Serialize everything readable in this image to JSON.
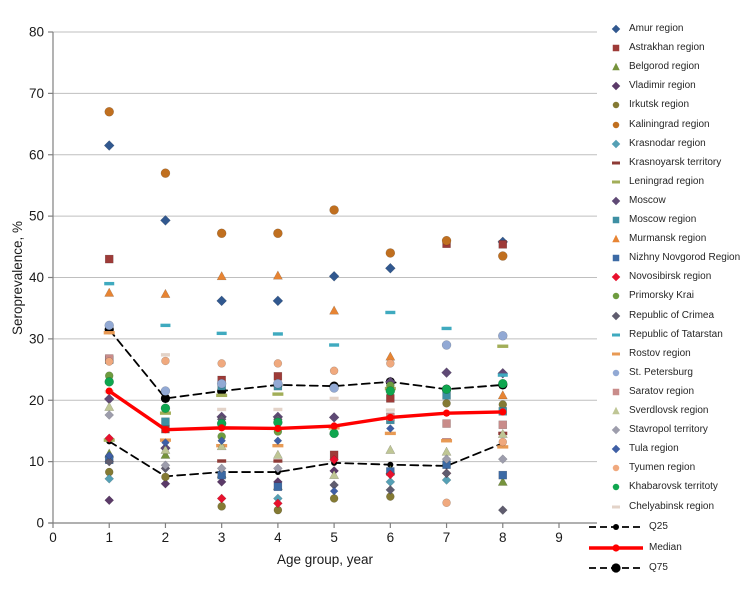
{
  "chart_data": {
    "type": "scatter",
    "title": "",
    "xlabel": "Age group, year",
    "ylabel": "Seroprevalence, %",
    "xlim": [
      0,
      9
    ],
    "ylim": [
      0,
      80
    ],
    "xticks": [
      0,
      1,
      2,
      3,
      4,
      5,
      6,
      7,
      8,
      9
    ],
    "yticks": [
      0,
      10,
      20,
      30,
      40,
      50,
      60,
      70,
      80
    ],
    "grid": "horizontal",
    "legend_position": "right",
    "x": [
      1,
      2,
      3,
      4,
      5,
      6,
      7,
      8
    ],
    "series": [
      {
        "name": "Amur region",
        "marker": "diamond",
        "color": "#31588F",
        "size": 8,
        "values": [
          61.5,
          49.3,
          36.2,
          36.2,
          40.2,
          41.5,
          null,
          45.8
        ]
      },
      {
        "name": "Astrakhan region",
        "marker": "square",
        "color": "#9E3B38",
        "size": 8,
        "values": [
          43.0,
          15.3,
          23.3,
          23.9,
          11.1,
          20.3,
          45.5,
          45.4
        ]
      },
      {
        "name": "Belgorod region",
        "marker": "triangle",
        "color": "#76933C",
        "size": 8,
        "values": [
          11.3,
          11.1,
          8.0,
          6.0,
          15.0,
          8.6,
          10.0,
          6.7
        ]
      },
      {
        "name": "Vladimir region",
        "marker": "diamond",
        "color": "#5B3A68",
        "size": 7,
        "values": [
          3.7,
          6.4,
          6.7,
          6.7,
          8.5,
          null,
          null,
          null
        ]
      },
      {
        "name": "Irkutsk region",
        "marker": "circle",
        "color": "#847A33",
        "size": 8,
        "values": [
          8.3,
          7.5,
          2.7,
          2.1,
          4.0,
          4.3,
          19.5,
          19.3
        ]
      },
      {
        "name": "Kaliningrad region",
        "marker": "circle",
        "color": "#C06F1F",
        "size": 9,
        "values": [
          67.0,
          57.0,
          47.2,
          47.2,
          51.0,
          44.0,
          46.0,
          43.5
        ]
      },
      {
        "name": "Krasnodar region",
        "marker": "diamond",
        "color": "#55A0B5",
        "size": 7,
        "values": [
          7.2,
          null,
          null,
          4.0,
          null,
          6.7,
          7.0,
          null
        ]
      },
      {
        "name": "Krasnoyarsk territory",
        "marker": "dash",
        "color": "#8E3A36",
        "size": 7,
        "values": [
          null,
          null,
          10.1,
          10.1,
          null,
          null,
          13.5,
          14.6
        ]
      },
      {
        "name": "Leningrad region",
        "marker": "dash",
        "color": "#A2AE58",
        "size": 9,
        "values": [
          13.5,
          17.9,
          20.8,
          21.0,
          null,
          21.9,
          null,
          28.8
        ]
      },
      {
        "name": "Moscow",
        "marker": "diamond",
        "color": "#5F4975",
        "size": 8,
        "values": [
          20.2,
          12.2,
          17.3,
          17.3,
          17.2,
          23.0,
          24.5,
          24.4
        ]
      },
      {
        "name": "Moscow region",
        "marker": "square",
        "color": "#3E8FA3",
        "size": 8,
        "values": [
          26.6,
          16.5,
          22.3,
          22.3,
          null,
          16.8,
          20.8,
          18.2
        ]
      },
      {
        "name": "Murmansk region",
        "marker": "triangle",
        "color": "#E78433",
        "size": 8,
        "values": [
          37.5,
          37.3,
          40.2,
          40.3,
          34.6,
          27.1,
          null,
          20.8
        ]
      },
      {
        "name": "Nizhny Novgorod Region",
        "marker": "square",
        "color": "#3C6AA5",
        "size": 8,
        "values": [
          10.3,
          null,
          7.8,
          5.9,
          null,
          8.4,
          9.5,
          7.8
        ]
      },
      {
        "name": "Novosibirsk region",
        "marker": "diamond",
        "color": "#E8112D",
        "size": 7,
        "values": [
          13.8,
          null,
          4.0,
          3.2,
          10.3,
          7.9,
          8.1,
          null
        ]
      },
      {
        "name": "Primorsky Krai",
        "marker": "circle",
        "color": "#6E9C3F",
        "size": 8,
        "values": [
          24.0,
          null,
          14.1,
          14.9,
          null,
          22.4,
          null,
          null
        ]
      },
      {
        "name": "Republic of Crimea",
        "marker": "diamond",
        "color": "#5F5C6E",
        "size": 7,
        "values": [
          10.0,
          8.9,
          16.9,
          16.9,
          6.2,
          5.4,
          8.1,
          2.1
        ]
      },
      {
        "name": "Republic of Tatarstan",
        "marker": "dash",
        "color": "#3FAABF",
        "size": 8,
        "values": [
          39.0,
          32.2,
          30.9,
          30.8,
          29.0,
          34.3,
          31.7,
          24.1
        ]
      },
      {
        "name": "Rostov region",
        "marker": "dash",
        "color": "#E89A54",
        "size": 9,
        "values": [
          31.0,
          13.5,
          12.6,
          12.6,
          15.5,
          14.6,
          13.4,
          12.4
        ]
      },
      {
        "name": "St. Petersburg",
        "marker": "circle",
        "color": "#92A9D4",
        "size": 9,
        "values": [
          32.2,
          21.5,
          22.7,
          22.7,
          22.0,
          null,
          29.0,
          30.5
        ]
      },
      {
        "name": "Saratov region",
        "marker": "square",
        "color": "#C98C8A",
        "size": 8,
        "values": [
          26.8,
          null,
          null,
          null,
          null,
          17.3,
          16.2,
          16.0
        ]
      },
      {
        "name": "Sverdlovsk region",
        "marker": "triangle",
        "color": "#BFC695",
        "size": 8,
        "values": [
          18.9,
          11.9,
          12.5,
          11.1,
          7.8,
          11.9,
          11.6,
          14.5
        ]
      },
      {
        "name": "Stavropol territory",
        "marker": "diamond",
        "color": "#9D9DAC",
        "size": 7,
        "values": [
          17.6,
          9.4,
          8.9,
          8.9,
          null,
          null,
          10.4,
          10.4
        ]
      },
      {
        "name": "Tula region",
        "marker": "diamond",
        "color": "#3F5FA5",
        "size": 6,
        "values": [
          11.0,
          13.1,
          13.4,
          13.4,
          5.2,
          15.4,
          null,
          null
        ]
      },
      {
        "name": "Tyumen region",
        "marker": "circle",
        "color": "#F0A97E",
        "size": 8,
        "values": [
          26.3,
          26.4,
          26.0,
          26.0,
          24.8,
          26.0,
          3.3,
          13.2
        ]
      },
      {
        "name": "Khabarovsk territoty",
        "marker": "circle",
        "color": "#0FA64F",
        "size": 9,
        "values": [
          23.0,
          18.7,
          16.2,
          16.4,
          14.6,
          21.5,
          21.8,
          22.7
        ]
      },
      {
        "name": "Chelyabinsk region",
        "marker": "dash",
        "color": "#E3D3C8",
        "size": 7,
        "values": [
          21.4,
          27.4,
          18.5,
          18.5,
          20.3,
          18.4,
          null,
          null
        ]
      }
    ],
    "lines": [
      {
        "name": "Q25",
        "style": "dashed",
        "color": "#000000",
        "width": 1.8,
        "dot": 3.0,
        "values": [
          13.3,
          7.6,
          8.3,
          8.3,
          9.8,
          9.5,
          9.3,
          13.0
        ]
      },
      {
        "name": "Median",
        "style": "solid",
        "color": "#FF0000",
        "width": 3.4,
        "dot": 3.6,
        "values": [
          21.5,
          15.2,
          15.5,
          15.4,
          15.8,
          17.2,
          17.9,
          18.1
        ]
      },
      {
        "name": "Q75",
        "style": "dashed",
        "color": "#000000",
        "width": 1.8,
        "dot": 4.6,
        "values": [
          31.5,
          20.3,
          21.5,
          22.5,
          22.3,
          23.0,
          21.8,
          22.5
        ]
      }
    ]
  }
}
